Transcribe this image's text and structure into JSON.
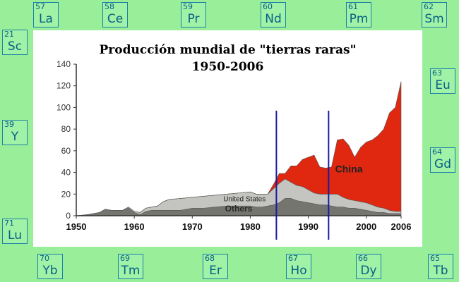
{
  "elements": [
    {
      "n": "57",
      "s": "La"
    },
    {
      "n": "58",
      "s": "Ce"
    },
    {
      "n": "59",
      "s": "Pr"
    },
    {
      "n": "60",
      "s": "Nd"
    },
    {
      "n": "61",
      "s": "Pm"
    },
    {
      "n": "62",
      "s": "Sm"
    },
    {
      "n": "21",
      "s": "Sc"
    },
    {
      "n": "63",
      "s": "Eu"
    },
    {
      "n": "39",
      "s": "Y"
    },
    {
      "n": "64",
      "s": "Gd"
    },
    {
      "n": "71",
      "s": "Lu"
    },
    {
      "n": "70",
      "s": "Yb"
    },
    {
      "n": "69",
      "s": "Tm"
    },
    {
      "n": "68",
      "s": "Er"
    },
    {
      "n": "67",
      "s": "Ho"
    },
    {
      "n": "66",
      "s": "Dy"
    },
    {
      "n": "65",
      "s": "Tb"
    }
  ],
  "colors": {
    "background": "#99ee99",
    "tile_border": "#1e7fa8",
    "tile_text": "#0a5f86",
    "china": "#e02810",
    "united_states": "#c4c4c0",
    "others": "#757570",
    "marker_lines": "#1a1aa6"
  },
  "chart_data": {
    "type": "area",
    "stacked": true,
    "title": "Producción mundial de \"tierras raras\"",
    "subtitle": "1950-2006",
    "xlabel": "",
    "ylabel": "",
    "xlim": [
      1950,
      2006
    ],
    "ylim": [
      0,
      140
    ],
    "yticks": [
      "0",
      "20",
      "40",
      "60",
      "80",
      "100",
      "120",
      "140"
    ],
    "xticks": [
      "1950",
      "1960",
      "1970",
      "1980",
      "1990",
      "2000",
      "2006"
    ],
    "x": [
      1950,
      1952,
      1954,
      1955,
      1956,
      1958,
      1959,
      1960,
      1961,
      1962,
      1963,
      1964,
      1965,
      1966,
      1968,
      1970,
      1972,
      1974,
      1976,
      1978,
      1980,
      1981,
      1982,
      1983,
      1984,
      1985,
      1986,
      1987,
      1988,
      1989,
      1990,
      1991,
      1992,
      1993,
      1994,
      1995,
      1996,
      1997,
      1998,
      1999,
      2000,
      2001,
      2002,
      2003,
      2004,
      2005,
      2006
    ],
    "series": [
      {
        "name": "Others",
        "values": [
          0,
          1,
          3,
          6,
          5,
          5,
          7,
          3,
          1,
          4,
          5,
          5,
          5,
          5,
          5,
          7,
          7,
          8,
          9,
          9,
          9,
          8,
          8,
          9,
          10,
          12,
          16,
          16,
          14,
          13,
          12,
          11,
          10,
          10,
          9,
          8,
          8,
          7,
          7,
          6,
          5,
          4,
          3,
          3,
          2,
          2,
          2
        ]
      },
      {
        "name": "United States",
        "values": [
          0,
          0,
          0,
          0,
          0,
          0,
          1,
          1,
          2,
          3,
          3,
          4,
          8,
          10,
          11,
          10,
          11,
          11,
          11,
          12,
          13,
          12,
          12,
          11,
          15,
          18,
          18,
          15,
          14,
          14,
          12,
          10,
          10,
          10,
          11,
          12,
          9,
          8,
          7,
          7,
          7,
          6,
          5,
          4,
          3,
          2,
          2
        ]
      },
      {
        "name": "China",
        "values": [
          0,
          0,
          0,
          0,
          0,
          0,
          0,
          0,
          0,
          0,
          0,
          0,
          0,
          0,
          0,
          0,
          0,
          0,
          0,
          0,
          0,
          0,
          0,
          0,
          4,
          9,
          5,
          15,
          18,
          25,
          30,
          35,
          25,
          24,
          25,
          50,
          54,
          50,
          40,
          50,
          56,
          60,
          66,
          73,
          90,
          96,
          120
        ]
      }
    ],
    "annotations": [
      {
        "text": "China",
        "series": "China"
      },
      {
        "text": "United States",
        "series": "United States"
      },
      {
        "text": "Others",
        "series": "Others"
      }
    ],
    "vertical_markers": [
      1984.5,
      1993.5
    ],
    "grid": false,
    "legend": "none"
  }
}
